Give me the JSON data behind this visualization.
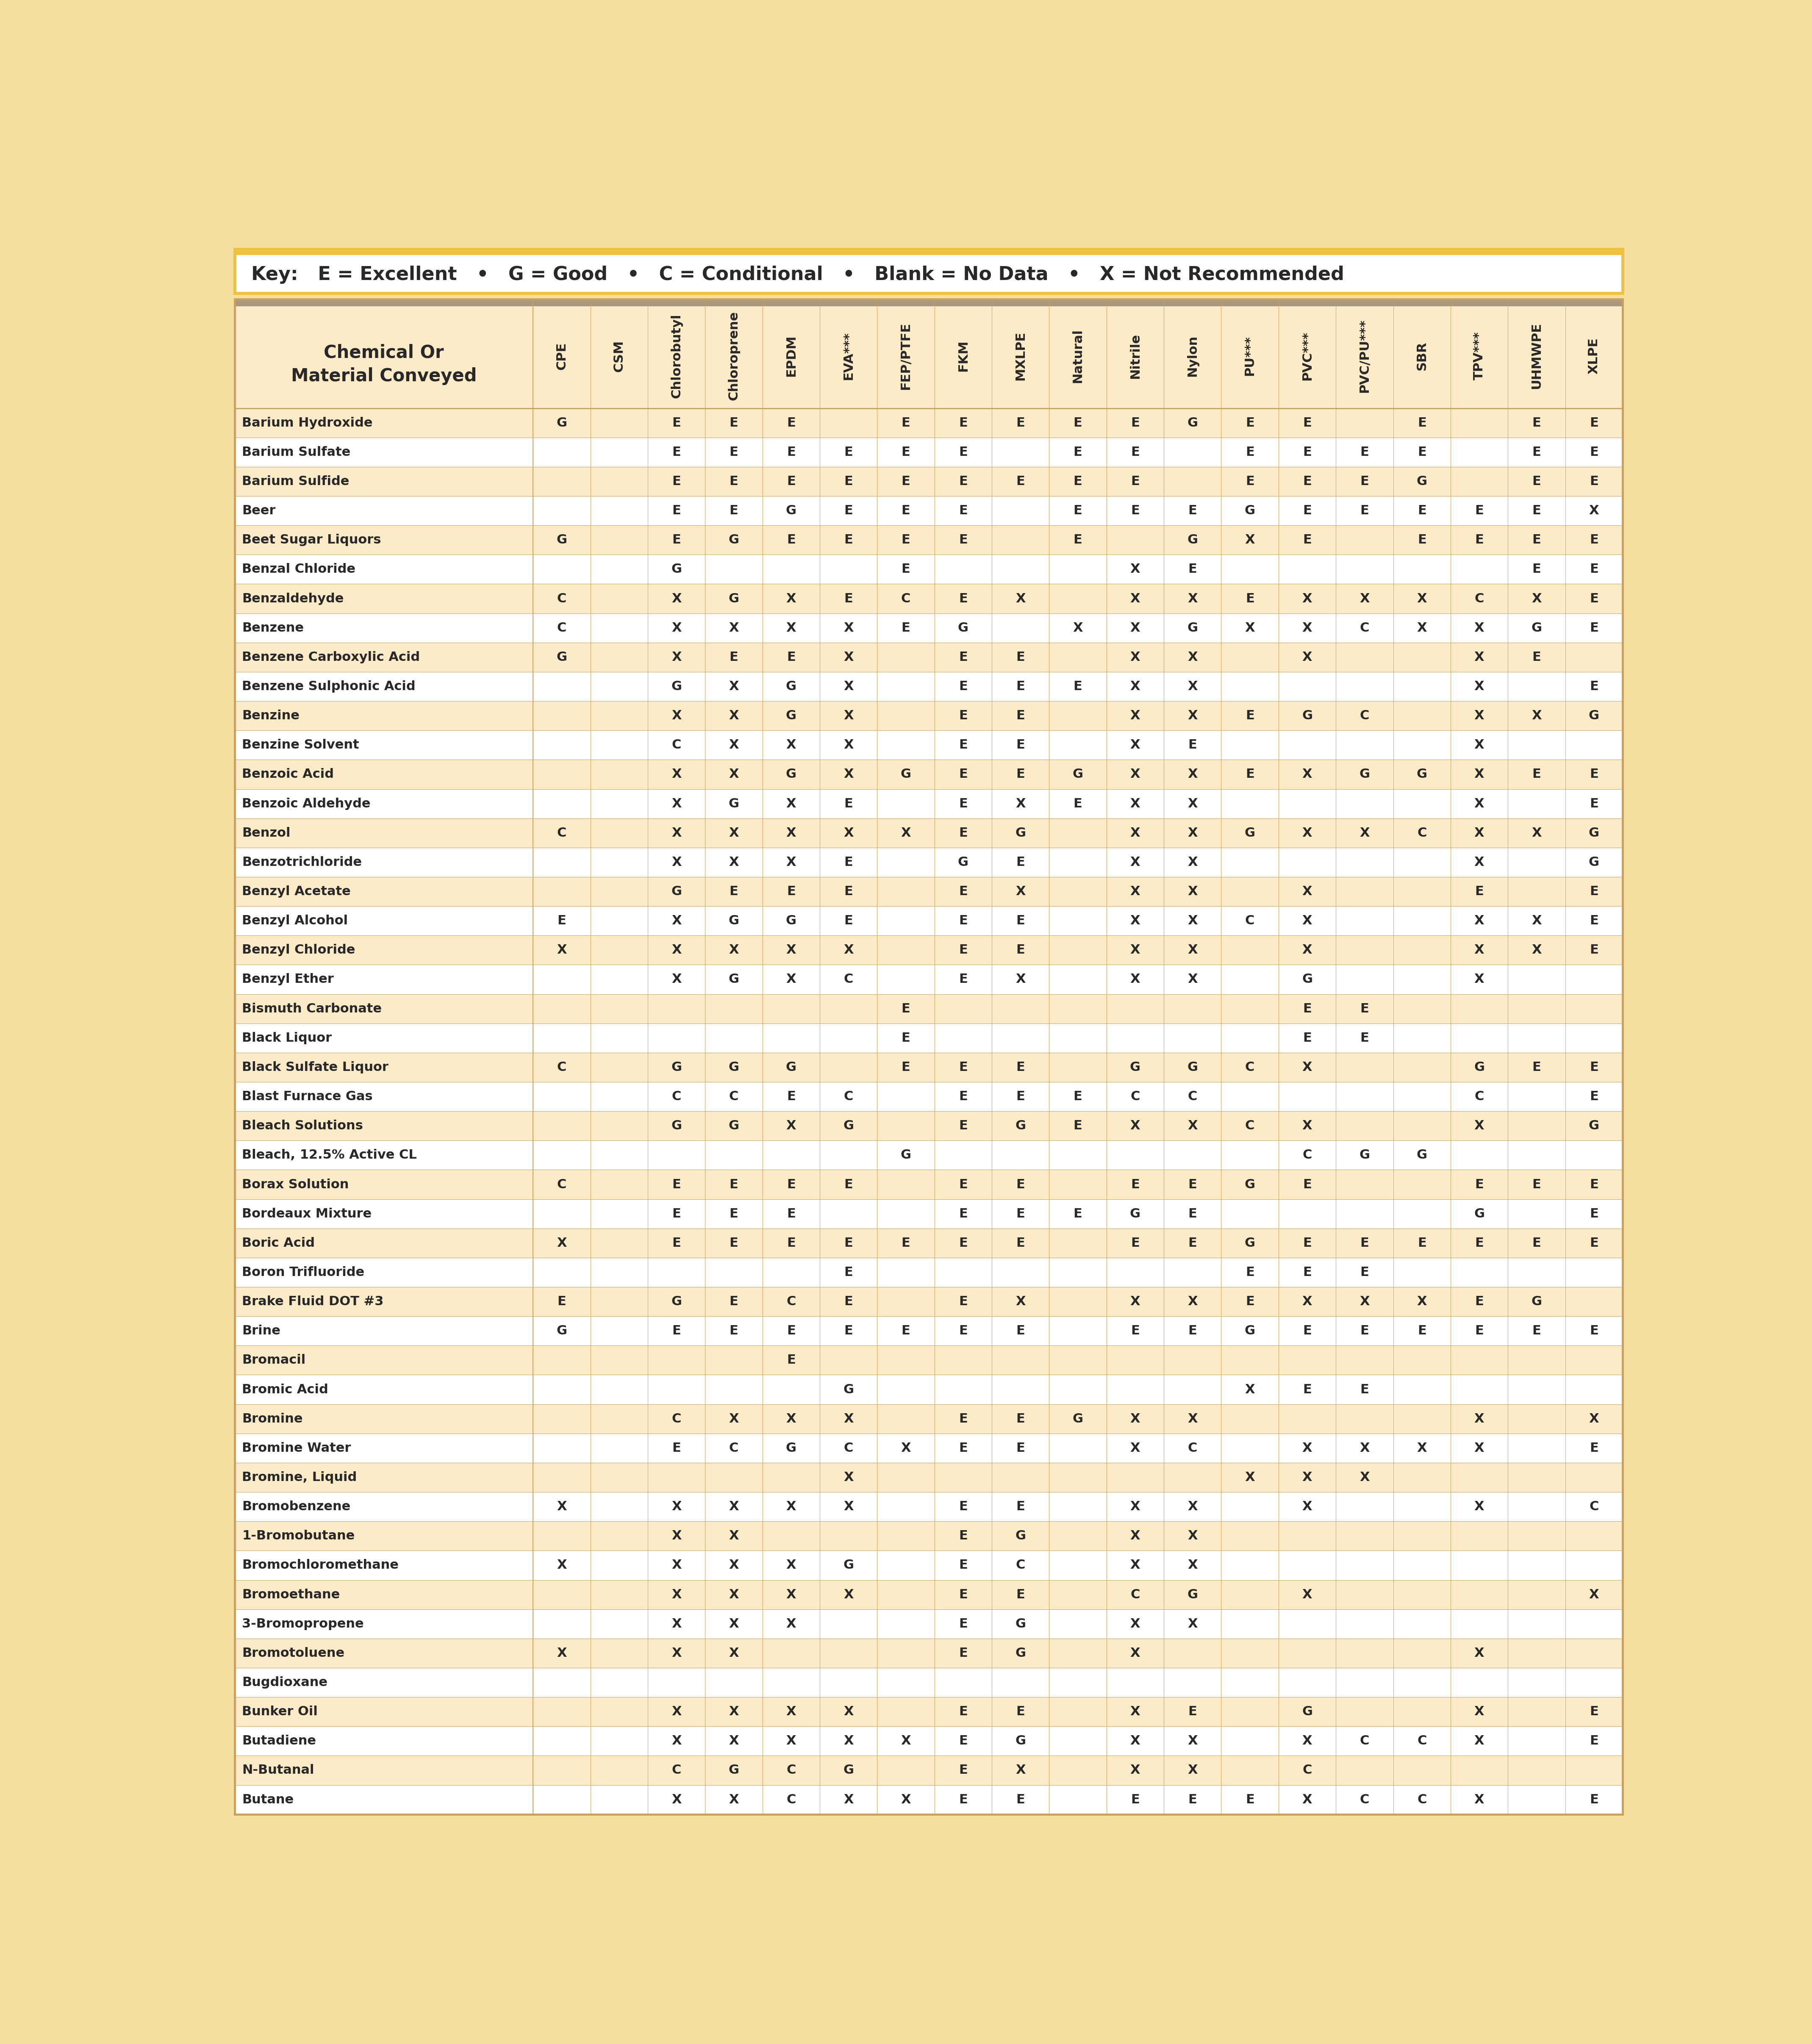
{
  "key_text_parts": [
    {
      "text": "Key:",
      "bold": true
    },
    {
      "text": "  E = Excellent",
      "bold": true
    },
    {
      "text": "   •   ",
      "bold": true
    },
    {
      "text": "G = Good",
      "bold": true
    },
    {
      "text": "   •   ",
      "bold": true
    },
    {
      "text": "C = Conditional",
      "bold": true
    },
    {
      "text": "   •   ",
      "bold": true
    },
    {
      "text": "Blank = No Data",
      "bold": true
    },
    {
      "text": "   •   ",
      "bold": true
    },
    {
      "text": "X = Not Recommended",
      "bold": true
    }
  ],
  "key_text": "Key:   E = Excellent   •   G = Good   •   C = Conditional   •   Blank = No Data   •   X = Not Recommended",
  "header_col": "Chemical Or\nMaterial Conveyed",
  "columns": [
    "CPE",
    "CSM",
    "Chlorobutyl",
    "Chloroprene",
    "EPDM",
    "EVA***",
    "FEP/PTFE",
    "FKM",
    "MXLPE",
    "Natural",
    "Nitrile",
    "Nylon",
    "PU***",
    "PVC***",
    "PVC/PU***",
    "SBR",
    "TPV***",
    "UHMWPE",
    "XLPE"
  ],
  "rows": [
    [
      "Barium Hydroxide",
      "G",
      "",
      "E",
      "E",
      "E",
      "",
      "E",
      "E",
      "E",
      "E",
      "E",
      "G",
      "E",
      "E",
      "",
      "E",
      "",
      "E",
      "E"
    ],
    [
      "Barium Sulfate",
      "",
      "",
      "E",
      "E",
      "E",
      "E",
      "E",
      "E",
      "",
      "E",
      "E",
      "",
      "E",
      "E",
      "E",
      "E",
      "",
      "E",
      "E"
    ],
    [
      "Barium Sulfide",
      "",
      "",
      "E",
      "E",
      "E",
      "E",
      "E",
      "E",
      "E",
      "E",
      "E",
      "",
      "E",
      "E",
      "E",
      "G",
      "",
      "E",
      "E"
    ],
    [
      "Beer",
      "",
      "",
      "E",
      "E",
      "G",
      "E",
      "E",
      "E",
      "",
      "E",
      "E",
      "E",
      "G",
      "E",
      "E",
      "E",
      "E",
      "E",
      "X"
    ],
    [
      "Beet Sugar Liquors",
      "G",
      "",
      "E",
      "G",
      "E",
      "E",
      "E",
      "E",
      "",
      "E",
      "",
      "G",
      "X",
      "E",
      "",
      "E",
      "E",
      "E",
      "E"
    ],
    [
      "Benzal Chloride",
      "",
      "",
      "G",
      "",
      "",
      "",
      "E",
      "",
      "",
      "",
      "X",
      "E",
      "",
      "",
      "",
      "",
      "",
      "E",
      "E"
    ],
    [
      "Benzaldehyde",
      "C",
      "",
      "X",
      "G",
      "X",
      "E",
      "C",
      "E",
      "X",
      "",
      "X",
      "X",
      "E",
      "X",
      "X",
      "X",
      "C",
      "X",
      "E",
      "E"
    ],
    [
      "Benzene",
      "C",
      "",
      "X",
      "X",
      "X",
      "X",
      "E",
      "G",
      "",
      "X",
      "X",
      "G",
      "X",
      "X",
      "C",
      "X",
      "X",
      "G",
      "E"
    ],
    [
      "Benzene Carboxylic Acid",
      "G",
      "",
      "X",
      "E",
      "E",
      "X",
      "",
      "E",
      "E",
      "",
      "X",
      "X",
      "",
      "X",
      "",
      "",
      "X",
      "E",
      ""
    ],
    [
      "Benzene Sulphonic Acid",
      "",
      "",
      "G",
      "X",
      "G",
      "X",
      "",
      "E",
      "E",
      "E",
      "X",
      "X",
      "",
      "",
      "",
      "",
      "X",
      "",
      "E",
      "E"
    ],
    [
      "Benzine",
      "",
      "",
      "X",
      "X",
      "G",
      "X",
      "",
      "E",
      "E",
      "",
      "X",
      "X",
      "E",
      "G",
      "C",
      "",
      "X",
      "X",
      "G",
      ""
    ],
    [
      "Benzine Solvent",
      "",
      "",
      "C",
      "X",
      "X",
      "X",
      "",
      "E",
      "E",
      "",
      "X",
      "E",
      "",
      "",
      "",
      "",
      "X",
      "",
      "",
      ""
    ],
    [
      "Benzoic Acid",
      "",
      "",
      "X",
      "X",
      "G",
      "X",
      "G",
      "E",
      "E",
      "G",
      "X",
      "X",
      "E",
      "X",
      "G",
      "G",
      "X",
      "E",
      "E",
      "E"
    ],
    [
      "Benzoic Aldehyde",
      "",
      "",
      "X",
      "G",
      "X",
      "E",
      "",
      "E",
      "X",
      "E",
      "X",
      "X",
      "",
      "",
      "",
      "",
      "X",
      "",
      "E",
      ""
    ],
    [
      "Benzol",
      "C",
      "",
      "X",
      "X",
      "X",
      "X",
      "X",
      "E",
      "G",
      "",
      "X",
      "X",
      "G",
      "X",
      "X",
      "C",
      "X",
      "X",
      "G",
      "E"
    ],
    [
      "Benzotrichloride",
      "",
      "",
      "X",
      "X",
      "X",
      "E",
      "",
      "G",
      "E",
      "",
      "X",
      "X",
      "",
      "",
      "",
      "",
      "X",
      "",
      "G",
      "G"
    ],
    [
      "Benzyl Acetate",
      "",
      "",
      "G",
      "E",
      "E",
      "E",
      "",
      "E",
      "X",
      "",
      "X",
      "X",
      "",
      "X",
      "",
      "",
      "E",
      "",
      "E",
      "E"
    ],
    [
      "Benzyl Alcohol",
      "E",
      "",
      "X",
      "G",
      "G",
      "E",
      "",
      "E",
      "E",
      "",
      "X",
      "X",
      "C",
      "X",
      "",
      "",
      "X",
      "X",
      "E",
      "E"
    ],
    [
      "Benzyl Chloride",
      "X",
      "",
      "X",
      "X",
      "X",
      "X",
      "",
      "E",
      "E",
      "",
      "X",
      "X",
      "",
      "X",
      "",
      "",
      "X",
      "X",
      "E",
      "E"
    ],
    [
      "Benzyl Ether",
      "",
      "",
      "X",
      "G",
      "X",
      "C",
      "",
      "E",
      "X",
      "",
      "X",
      "X",
      "",
      "G",
      "",
      "",
      "X",
      "",
      "",
      ""
    ],
    [
      "Bismuth Carbonate",
      "",
      "",
      "",
      "",
      "",
      "",
      "E",
      "",
      "",
      "",
      "",
      "",
      "",
      "E",
      "E",
      "",
      "",
      "",
      "",
      ""
    ],
    [
      "Black Liquor",
      "",
      "",
      "",
      "",
      "",
      "",
      "E",
      "",
      "",
      "",
      "",
      "",
      "",
      "E",
      "E",
      "",
      "",
      "",
      "",
      ""
    ],
    [
      "Black Sulfate Liquor",
      "C",
      "",
      "G",
      "G",
      "G",
      "",
      "E",
      "E",
      "E",
      "",
      "G",
      "G",
      "C",
      "X",
      "",
      "",
      "G",
      "E",
      "E",
      ""
    ],
    [
      "Blast Furnace Gas",
      "",
      "",
      "C",
      "C",
      "E",
      "C",
      "",
      "E",
      "E",
      "E",
      "C",
      "C",
      "",
      "",
      "",
      "",
      "C",
      "",
      "E",
      "E"
    ],
    [
      "Bleach Solutions",
      "",
      "",
      "G",
      "G",
      "X",
      "G",
      "",
      "E",
      "G",
      "E",
      "X",
      "X",
      "C",
      "X",
      "",
      "",
      "X",
      "",
      "G",
      "G"
    ],
    [
      "Bleach, 12.5% Active CL",
      "",
      "",
      "",
      "",
      "",
      "",
      "G",
      "",
      "",
      "",
      "",
      "",
      "",
      "C",
      "G",
      "G",
      "",
      "",
      "",
      ""
    ],
    [
      "Borax Solution",
      "C",
      "",
      "E",
      "E",
      "E",
      "E",
      "",
      "E",
      "E",
      "",
      "E",
      "E",
      "G",
      "E",
      "",
      "",
      "E",
      "E",
      "E",
      "E"
    ],
    [
      "Bordeaux Mixture",
      "",
      "",
      "E",
      "E",
      "E",
      "",
      "",
      "E",
      "E",
      "E",
      "G",
      "E",
      "",
      "",
      "",
      "",
      "G",
      "",
      "E",
      "E"
    ],
    [
      "Boric Acid",
      "X",
      "",
      "E",
      "E",
      "E",
      "E",
      "E",
      "E",
      "E",
      "",
      "E",
      "E",
      "G",
      "E",
      "E",
      "E",
      "E",
      "E",
      "E",
      "E"
    ],
    [
      "Boron Trifluoride",
      "",
      "",
      "",
      "",
      "",
      "E",
      "",
      "",
      "",
      "",
      "",
      "",
      "E",
      "E",
      "E",
      "",
      "",
      "",
      "",
      ""
    ],
    [
      "Brake Fluid DOT #3",
      "E",
      "",
      "G",
      "E",
      "C",
      "E",
      "",
      "E",
      "X",
      "",
      "X",
      "X",
      "E",
      "X",
      "X",
      "X",
      "E",
      "G",
      "",
      ""
    ],
    [
      "Brine",
      "G",
      "",
      "E",
      "E",
      "E",
      "E",
      "E",
      "E",
      "E",
      "",
      "E",
      "E",
      "G",
      "E",
      "E",
      "E",
      "E",
      "E",
      "E",
      "E"
    ],
    [
      "Bromacil",
      "",
      "",
      "",
      "",
      "E",
      "",
      "",
      "",
      "",
      "",
      "",
      "",
      "",
      "",
      "",
      "",
      "",
      "",
      "",
      ""
    ],
    [
      "Bromic Acid",
      "",
      "",
      "",
      "",
      "",
      "G",
      "",
      "",
      "",
      "",
      "",
      "",
      "X",
      "E",
      "E",
      "",
      "",
      "",
      "",
      ""
    ],
    [
      "Bromine",
      "",
      "",
      "C",
      "X",
      "X",
      "X",
      "",
      "E",
      "E",
      "G",
      "X",
      "X",
      "",
      "",
      "",
      "",
      "X",
      "",
      "X",
      "G"
    ],
    [
      "Bromine Water",
      "",
      "",
      "E",
      "C",
      "G",
      "C",
      "X",
      "E",
      "E",
      "",
      "X",
      "C",
      "",
      "X",
      "X",
      "X",
      "X",
      "",
      "E",
      "E"
    ],
    [
      "Bromine, Liquid",
      "",
      "",
      "",
      "",
      "",
      "X",
      "",
      "",
      "",
      "",
      "",
      "",
      "X",
      "X",
      "X",
      "",
      "",
      "",
      "",
      ""
    ],
    [
      "Bromobenzene",
      "X",
      "",
      "X",
      "X",
      "X",
      "X",
      "",
      "E",
      "E",
      "",
      "X",
      "X",
      "",
      "X",
      "",
      "",
      "X",
      "",
      "C",
      "C"
    ],
    [
      "1-Bromobutane",
      "",
      "",
      "X",
      "X",
      "",
      "",
      "",
      "E",
      "G",
      "",
      "X",
      "X",
      "",
      "",
      "",
      "",
      "",
      "",
      "",
      ""
    ],
    [
      "Bromochloromethane",
      "X",
      "",
      "X",
      "X",
      "X",
      "G",
      "",
      "E",
      "C",
      "",
      "X",
      "X",
      "",
      "",
      "",
      "",
      "",
      "",
      "",
      ""
    ],
    [
      "Bromoethane",
      "",
      "",
      "X",
      "X",
      "X",
      "X",
      "",
      "E",
      "E",
      "",
      "C",
      "G",
      "",
      "X",
      "",
      "",
      "",
      "",
      "X",
      ""
    ],
    [
      "3-Bromopropene",
      "",
      "",
      "X",
      "X",
      "X",
      "",
      "",
      "E",
      "G",
      "",
      "X",
      "X",
      "",
      "",
      "",
      "",
      "",
      "",
      "",
      ""
    ],
    [
      "Bromotoluene",
      "X",
      "",
      "X",
      "X",
      "",
      "",
      "",
      "E",
      "G",
      "",
      "X",
      "",
      "",
      "",
      "",
      "",
      "X",
      "",
      "",
      "X"
    ],
    [
      "Bugdioxane",
      "",
      "",
      "",
      "",
      "",
      "",
      "",
      "",
      "",
      "",
      "",
      "",
      "",
      "",
      "",
      "",
      "",
      "",
      "",
      "E"
    ],
    [
      "Bunker Oil",
      "",
      "",
      "X",
      "X",
      "X",
      "X",
      "",
      "E",
      "E",
      "",
      "X",
      "E",
      "",
      "G",
      "",
      "",
      "X",
      "",
      "E",
      "E"
    ],
    [
      "Butadiene",
      "",
      "",
      "X",
      "X",
      "X",
      "X",
      "X",
      "E",
      "G",
      "",
      "X",
      "X",
      "",
      "X",
      "C",
      "C",
      "X",
      "",
      "E",
      "E"
    ],
    [
      "N-Butanal",
      "",
      "",
      "C",
      "G",
      "C",
      "G",
      "",
      "E",
      "X",
      "",
      "X",
      "X",
      "",
      "C",
      "",
      "",
      "",
      "",
      "",
      ""
    ],
    [
      "Butane",
      "",
      "",
      "X",
      "X",
      "C",
      "X",
      "X",
      "E",
      "E",
      "",
      "E",
      "E",
      "E",
      "X",
      "C",
      "C",
      "X",
      "",
      "E",
      "E"
    ]
  ],
  "colors": {
    "page_bg": "#F5DFA0",
    "key_bg": "#FFFFFF",
    "key_border": "#F0C040",
    "key_border_top": "#F0C040",
    "header_bg": "#FDEBC8",
    "header_stripe": "#A89880",
    "row_even_bg": "#FDEBC8",
    "row_odd_bg": "#FFFFFF",
    "cell_border": "#C8A060",
    "outer_border": "#C8A060",
    "text_color": "#282828"
  }
}
